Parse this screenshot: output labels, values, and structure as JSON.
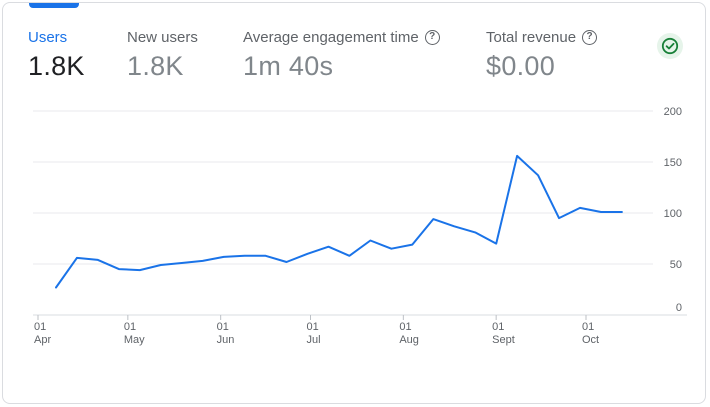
{
  "metrics": [
    {
      "label": "Users",
      "value": "1.8K",
      "active": true,
      "help": false
    },
    {
      "label": "New users",
      "value": "1.8K",
      "active": false,
      "help": false
    },
    {
      "label": "Average engagement time",
      "value": "1m 40s",
      "active": false,
      "help": true
    },
    {
      "label": "Total revenue",
      "value": "$0.00",
      "active": false,
      "help": true
    }
  ],
  "icons": {
    "help": "help-circle-icon",
    "status": "check-circle-icon"
  },
  "colors": {
    "accent": "#1a73e8",
    "status_green": "#188038",
    "line": "#1a73e8",
    "grid": "#e8eaed"
  },
  "chart_data": {
    "type": "line",
    "title": "",
    "xlabel": "",
    "ylabel": "",
    "ylim": [
      0,
      200
    ],
    "y_ticks": [
      0,
      50,
      100,
      150,
      200
    ],
    "grid": true,
    "x_tick_labels": [
      {
        "day": "01",
        "month": "Apr"
      },
      {
        "day": "01",
        "month": "May"
      },
      {
        "day": "01",
        "month": "Jun"
      },
      {
        "day": "01",
        "month": "Jul"
      },
      {
        "day": "01",
        "month": "Aug"
      },
      {
        "day": "01",
        "month": "Sept"
      },
      {
        "day": "01",
        "month": "Oct"
      }
    ],
    "x_tick_dates": [
      "2024-04-01",
      "2024-05-01",
      "2024-06-01",
      "2024-07-01",
      "2024-08-01",
      "2024-09-01",
      "2024-10-01"
    ],
    "series": [
      {
        "color": "#1a73e8",
        "x": [
          "2024-04-07",
          "2024-04-14",
          "2024-04-21",
          "2024-04-28",
          "2024-05-05",
          "2024-05-12",
          "2024-05-19",
          "2024-05-26",
          "2024-06-02",
          "2024-06-09",
          "2024-06-16",
          "2024-06-23",
          "2024-06-30",
          "2024-07-07",
          "2024-07-14",
          "2024-07-21",
          "2024-07-28",
          "2024-08-04",
          "2024-08-11",
          "2024-08-18",
          "2024-08-25",
          "2024-09-01",
          "2024-09-08",
          "2024-09-15",
          "2024-09-22",
          "2024-09-29",
          "2024-10-06",
          "2024-10-13"
        ],
        "values": [
          27,
          56,
          54,
          45,
          44,
          49,
          51,
          53,
          57,
          58,
          58,
          52,
          60,
          67,
          58,
          73,
          65,
          69,
          94,
          87,
          81,
          70,
          156,
          137,
          95,
          105,
          101,
          101
        ]
      }
    ]
  }
}
